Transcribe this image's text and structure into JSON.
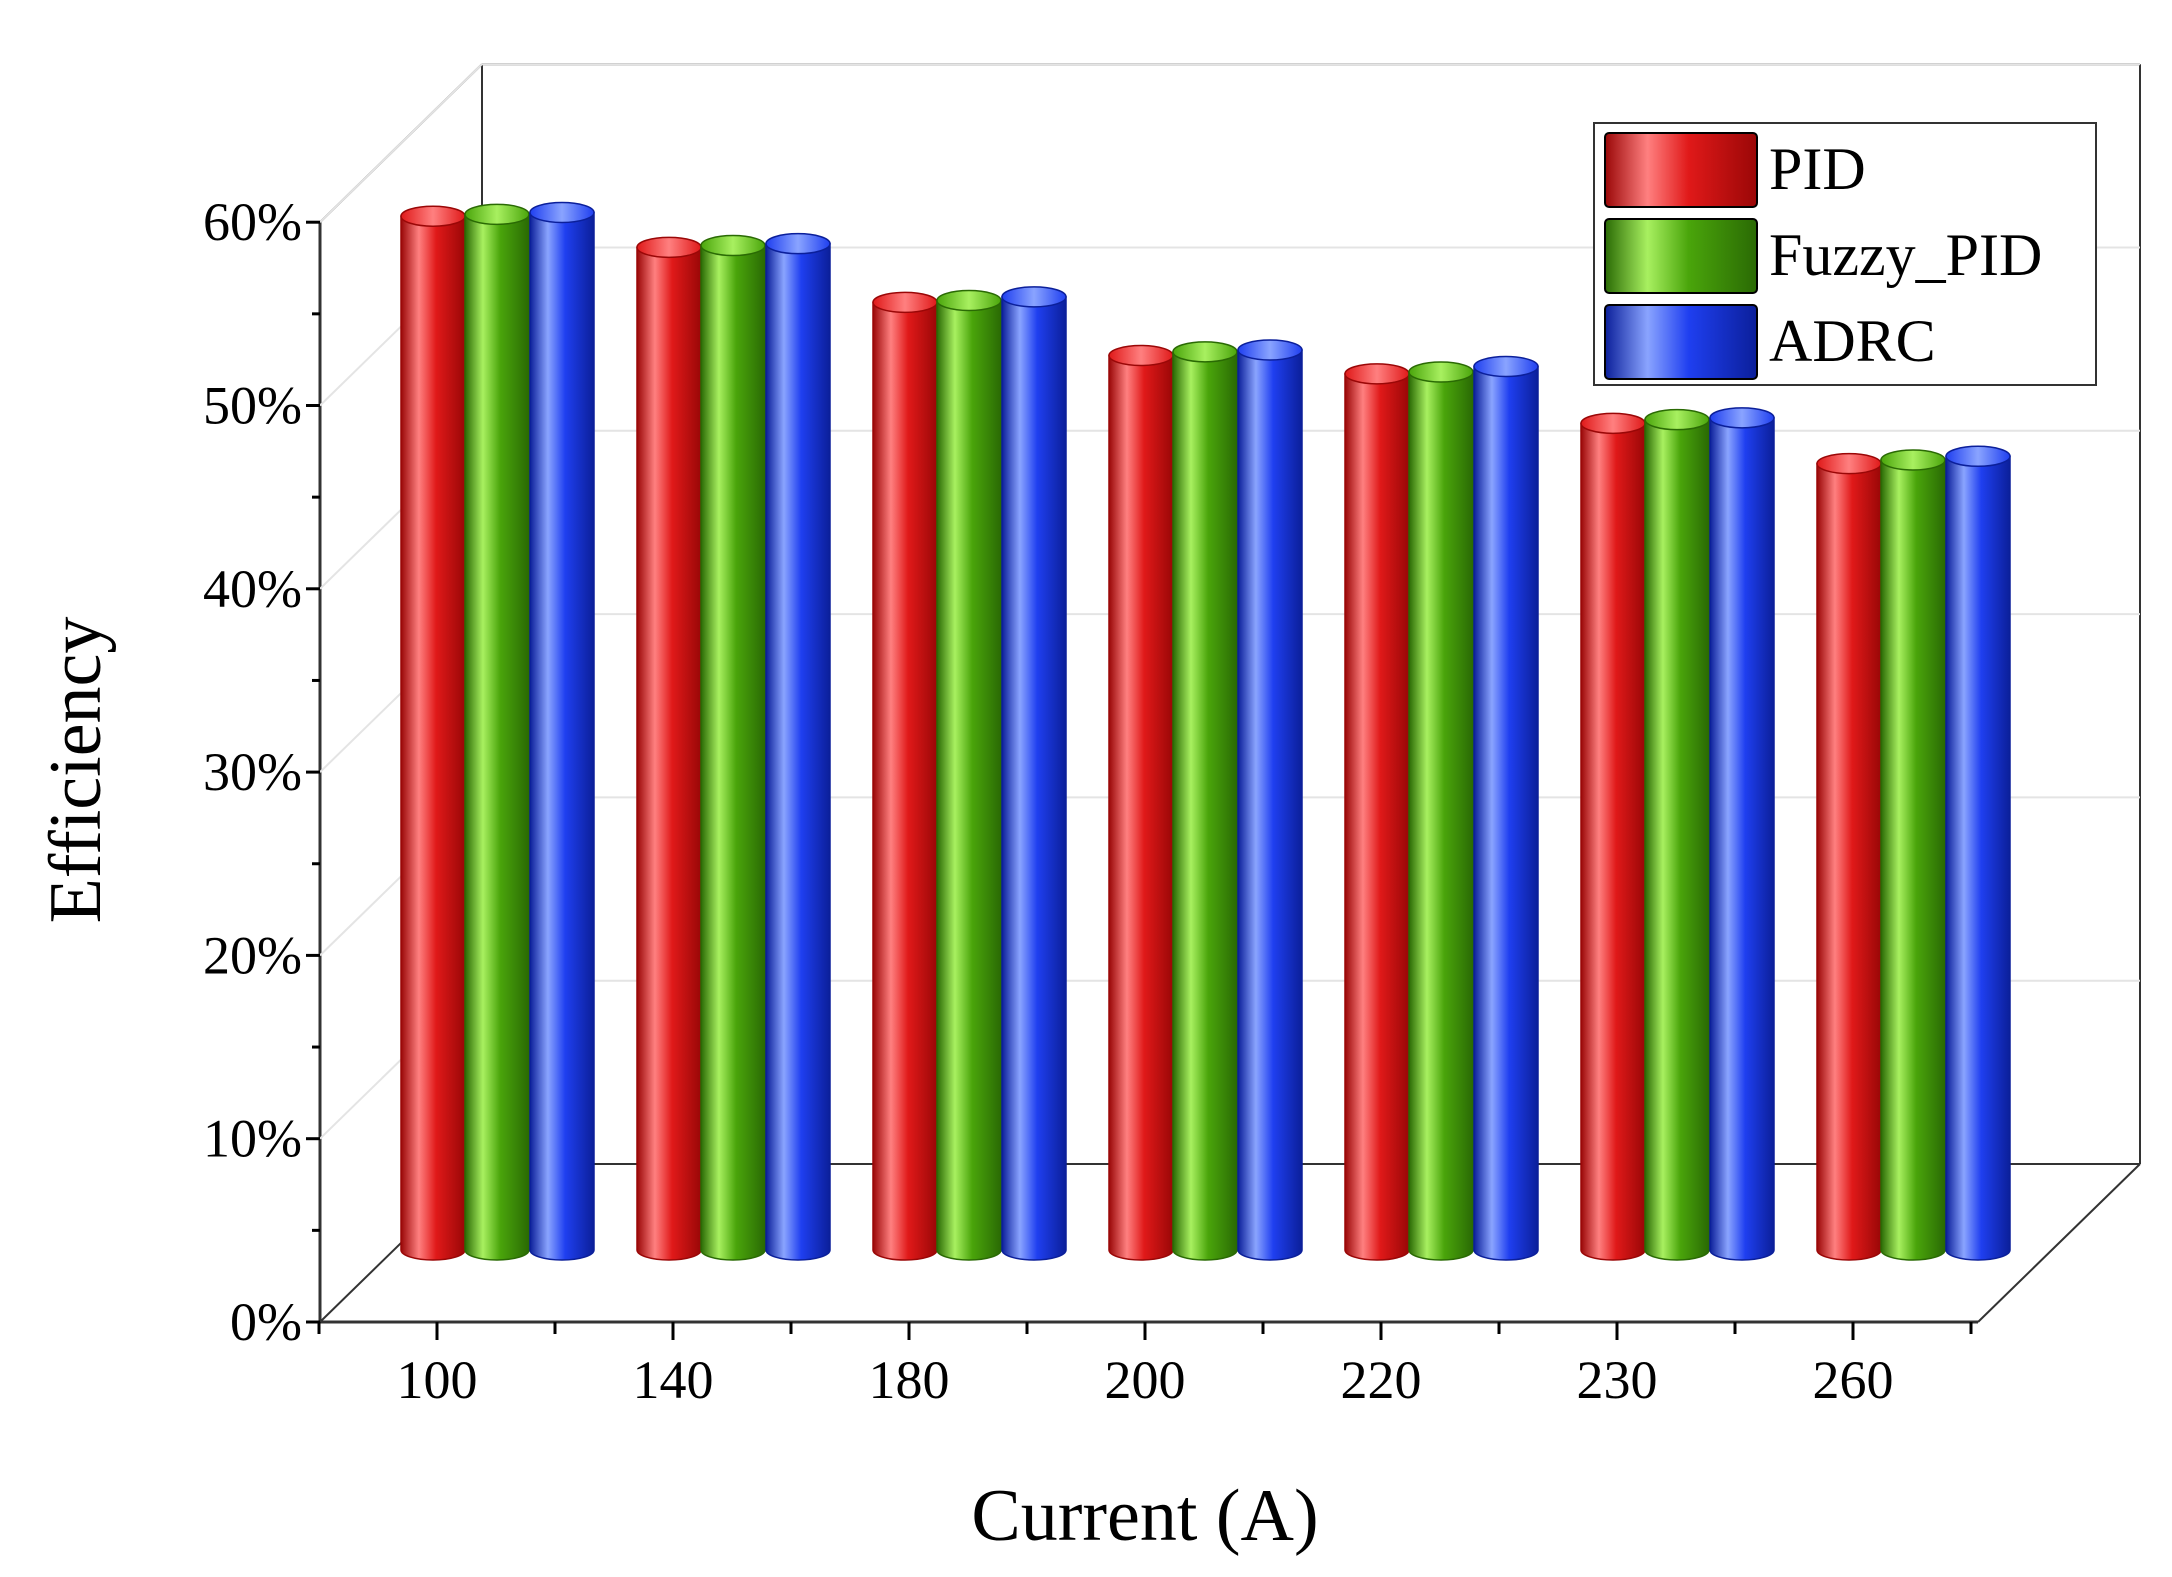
{
  "chart_data": {
    "type": "bar",
    "style": "3d-cylinder",
    "title": "",
    "xlabel": "Current (A)",
    "ylabel": "Efficiency",
    "categories": [
      "100",
      "140",
      "180",
      "200",
      "220",
      "230",
      "260"
    ],
    "series": [
      {
        "name": "PID",
        "color": "#e01919",
        "light": "#ff8080",
        "dark": "#9a0707",
        "values": [
          56.4,
          54.7,
          51.7,
          48.8,
          47.8,
          45.1,
          42.9
        ]
      },
      {
        "name": "Fuzzy_PID",
        "color": "#4aa50b",
        "light": "#a8f060",
        "dark": "#2a6a04",
        "values": [
          56.5,
          54.8,
          51.8,
          49.0,
          47.9,
          45.3,
          43.1
        ]
      },
      {
        "name": "ADRC",
        "color": "#1f3ff0",
        "light": "#8aa4ff",
        "dark": "#0b1f9a",
        "values": [
          56.6,
          54.9,
          52.0,
          49.1,
          48.2,
          45.4,
          43.3
        ]
      }
    ],
    "y_ticks": [
      "0%",
      "10%",
      "20%",
      "30%",
      "40%",
      "50%",
      "60%"
    ],
    "ylim": [
      0,
      60
    ],
    "legend_position": "top-right",
    "grid": true
  }
}
